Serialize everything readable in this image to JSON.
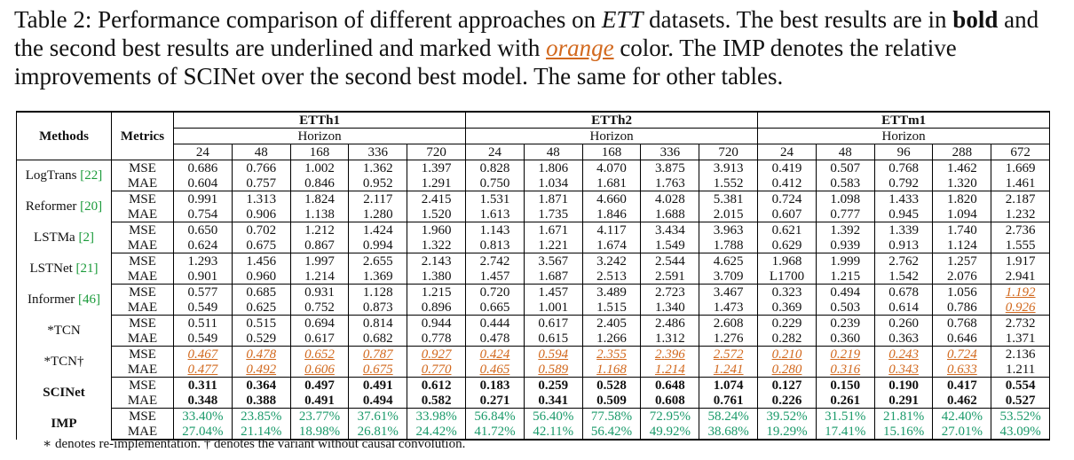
{
  "caption": {
    "parts": [
      "Table 2: Performance comparison of different approaches on ",
      "ETT",
      " datasets. The best results are in ",
      "bold",
      " and the second best results are underlined and marked with ",
      "orange",
      " color. The IMP denotes the relative improvements of SCINet over the second best model. The same for other tables."
    ]
  },
  "table": {
    "headers": {
      "methods": "Methods",
      "metrics": "Metrics",
      "horizon": "Horizon"
    },
    "datasets": [
      {
        "name": "ETTh1",
        "horizons": [
          24,
          48,
          168,
          336,
          720
        ]
      },
      {
        "name": "ETTh2",
        "horizons": [
          24,
          48,
          168,
          336,
          720
        ]
      },
      {
        "name": "ETTm1",
        "horizons": [
          24,
          48,
          96,
          288,
          672
        ]
      }
    ],
    "rows": [
      {
        "method": "LogTrans",
        "ref": "[22]",
        "metrics": [
          {
            "name": "MSE",
            "values": [
              "0.686",
              "0.766",
              "1.002",
              "1.362",
              "1.397",
              "0.828",
              "1.806",
              "4.070",
              "3.875",
              "3.913",
              "0.419",
              "0.507",
              "0.768",
              "1.462",
              "1.669"
            ]
          },
          {
            "name": "MAE",
            "values": [
              "0.604",
              "0.757",
              "0.846",
              "0.952",
              "1.291",
              "0.750",
              "1.034",
              "1.681",
              "1.763",
              "1.552",
              "0.412",
              "0.583",
              "0.792",
              "1.320",
              "1.461"
            ]
          }
        ]
      },
      {
        "method": "Reformer",
        "ref": "[20]",
        "metrics": [
          {
            "name": "MSE",
            "values": [
              "0.991",
              "1.313",
              "1.824",
              "2.117",
              "2.415",
              "1.531",
              "1.871",
              "4.660",
              "4.028",
              "5.381",
              "0.724",
              "1.098",
              "1.433",
              "1.820",
              "2.187"
            ]
          },
          {
            "name": "MAE",
            "values": [
              "0.754",
              "0.906",
              "1.138",
              "1.280",
              "1.520",
              "1.613",
              "1.735",
              "1.846",
              "1.688",
              "2.015",
              "0.607",
              "0.777",
              "0.945",
              "1.094",
              "1.232"
            ]
          }
        ]
      },
      {
        "method": "LSTMa",
        "ref": "[2]",
        "metrics": [
          {
            "name": "MSE",
            "values": [
              "0.650",
              "0.702",
              "1.212",
              "1.424",
              "1.960",
              "1.143",
              "1.671",
              "4.117",
              "3.434",
              "3.963",
              "0.621",
              "1.392",
              "1.339",
              "1.740",
              "2.736"
            ]
          },
          {
            "name": "MAE",
            "values": [
              "0.624",
              "0.675",
              "0.867",
              "0.994",
              "1.322",
              "0.813",
              "1.221",
              "1.674",
              "1.549",
              "1.788",
              "0.629",
              "0.939",
              "0.913",
              "1.124",
              "1.555"
            ]
          }
        ]
      },
      {
        "method": "LSTNet",
        "ref": "[21]",
        "metrics": [
          {
            "name": "MSE",
            "values": [
              "1.293",
              "1.456",
              "1.997",
              "2.655",
              "2.143",
              "2.742",
              "3.567",
              "3.242",
              "2.544",
              "4.625",
              "1.968",
              "1.999",
              "2.762",
              "1.257",
              "1.917"
            ]
          },
          {
            "name": "MAE",
            "values": [
              "0.901",
              "0.960",
              "1.214",
              "1.369",
              "1.380",
              "1.457",
              "1.687",
              "2.513",
              "2.591",
              "3.709",
              "L1700",
              "1.215",
              "1.542",
              "2.076",
              "2.941"
            ]
          }
        ]
      },
      {
        "method": "Informer",
        "ref": "[46]",
        "metrics": [
          {
            "name": "MSE",
            "values": [
              "0.577",
              "0.685",
              "0.931",
              "1.128",
              "1.215",
              "0.720",
              "1.457",
              "3.489",
              "2.723",
              "3.467",
              "0.323",
              "0.494",
              "0.678",
              "1.056",
              "1.192"
            ]
          },
          {
            "name": "MAE",
            "values": [
              "0.549",
              "0.625",
              "0.752",
              "0.873",
              "0.896",
              "0.665",
              "1.001",
              "1.515",
              "1.340",
              "1.473",
              "0.369",
              "0.503",
              "0.614",
              "0.786",
              "0.926"
            ]
          }
        ]
      },
      {
        "method": "*TCN",
        "metrics": [
          {
            "name": "MSE",
            "values": [
              "0.511",
              "0.515",
              "0.694",
              "0.814",
              "0.944",
              "0.444",
              "0.617",
              "2.405",
              "2.486",
              "2.608",
              "0.229",
              "0.239",
              "0.260",
              "0.768",
              "2.732"
            ]
          },
          {
            "name": "MAE",
            "values": [
              "0.549",
              "0.529",
              "0.617",
              "0.682",
              "0.778",
              "0.478",
              "0.615",
              "1.266",
              "1.312",
              "1.276",
              "0.282",
              "0.360",
              "0.363",
              "0.646",
              "1.371"
            ]
          }
        ]
      },
      {
        "method": "*TCN†",
        "metrics": [
          {
            "name": "MSE",
            "values": [
              "0.467",
              "0.478",
              "0.652",
              "0.787",
              "0.927",
              "0.424",
              "0.594",
              "2.355",
              "2.396",
              "2.572",
              "0.210",
              "0.219",
              "0.243",
              "0.724",
              "2.136"
            ]
          },
          {
            "name": "MAE",
            "values": [
              "0.477",
              "0.492",
              "0.606",
              "0.675",
              "0.770",
              "0.465",
              "0.589",
              "1.168",
              "1.214",
              "1.241",
              "0.280",
              "0.316",
              "0.343",
              "0.633",
              "1.211"
            ]
          }
        ]
      },
      {
        "method": "SCINet",
        "metrics": [
          {
            "name": "MSE",
            "values": [
              "0.311",
              "0.364",
              "0.497",
              "0.491",
              "0.612",
              "0.183",
              "0.259",
              "0.528",
              "0.648",
              "1.074",
              "0.127",
              "0.150",
              "0.190",
              "0.417",
              "0.554"
            ]
          },
          {
            "name": "MAE",
            "values": [
              "0.348",
              "0.388",
              "0.491",
              "0.494",
              "0.582",
              "0.271",
              "0.341",
              "0.509",
              "0.608",
              "0.761",
              "0.226",
              "0.261",
              "0.291",
              "0.462",
              "0.527"
            ]
          }
        ]
      },
      {
        "method": "IMP",
        "metrics": [
          {
            "name": "MSE",
            "values": [
              "33.40%",
              "23.85%",
              "23.77%",
              "37.61%",
              "33.98%",
              "56.84%",
              "56.40%",
              "77.58%",
              "72.95%",
              "58.24%",
              "39.52%",
              "31.51%",
              "21.81%",
              "42.40%",
              "53.52%"
            ]
          },
          {
            "name": "MAE",
            "values": [
              "27.04%",
              "21.14%",
              "18.98%",
              "26.81%",
              "24.42%",
              "41.72%",
              "42.11%",
              "56.42%",
              "49.92%",
              "38.68%",
              "19.29%",
              "17.41%",
              "15.16%",
              "27.01%",
              "43.09%"
            ]
          }
        ]
      }
    ]
  },
  "footnote": "∗ denotes re-implementation. † denotes the variant without causal convolution."
}
